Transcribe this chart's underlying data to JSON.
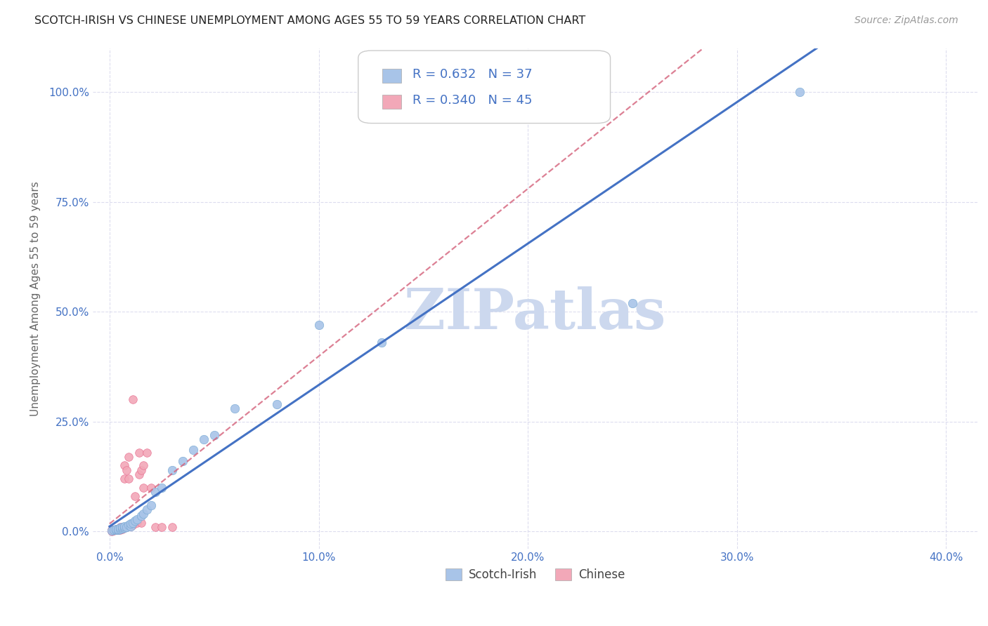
{
  "title": "SCOTCH-IRISH VS CHINESE UNEMPLOYMENT AMONG AGES 55 TO 59 YEARS CORRELATION CHART",
  "source": "Source: ZipAtlas.com",
  "ylabel": "Unemployment Among Ages 55 to 59 years",
  "xlabel_ticks": [
    "0.0%",
    "10.0%",
    "20.0%",
    "30.0%",
    "40.0%"
  ],
  "xlabel_vals": [
    0.0,
    0.1,
    0.2,
    0.3,
    0.4
  ],
  "ylabel_ticks": [
    "0.0%",
    "25.0%",
    "50.0%",
    "75.0%",
    "100.0%"
  ],
  "ylabel_vals": [
    0.0,
    0.25,
    0.5,
    0.75,
    1.0
  ],
  "xlim": [
    -0.008,
    0.415
  ],
  "ylim": [
    -0.04,
    1.1
  ],
  "scotch_irish_R": "0.632",
  "scotch_irish_N": "37",
  "chinese_R": "0.340",
  "chinese_N": "45",
  "scotch_irish_color": "#a8c4e8",
  "scotch_irish_edge": "#7aaad4",
  "chinese_color": "#f2a8b8",
  "chinese_edge": "#e87090",
  "trend_scotch_color": "#4472c4",
  "trend_chinese_color": "#d4607a",
  "watermark": "ZIPatlas",
  "watermark_color": "#ccd8ee",
  "background_color": "#ffffff",
  "grid_color": "#ddddee",
  "scotch_irish_x": [
    0.001,
    0.002,
    0.003,
    0.003,
    0.004,
    0.004,
    0.005,
    0.005,
    0.006,
    0.006,
    0.007,
    0.007,
    0.008,
    0.009,
    0.01,
    0.01,
    0.011,
    0.012,
    0.013,
    0.015,
    0.016,
    0.018,
    0.02,
    0.022,
    0.025,
    0.03,
    0.035,
    0.04,
    0.045,
    0.05,
    0.06,
    0.08,
    0.1,
    0.13,
    0.18,
    0.25,
    0.33
  ],
  "scotch_irish_y": [
    0.002,
    0.003,
    0.003,
    0.005,
    0.004,
    0.006,
    0.005,
    0.008,
    0.007,
    0.01,
    0.008,
    0.012,
    0.01,
    0.015,
    0.012,
    0.018,
    0.02,
    0.025,
    0.028,
    0.035,
    0.04,
    0.05,
    0.06,
    0.09,
    0.1,
    0.14,
    0.16,
    0.185,
    0.21,
    0.22,
    0.28,
    0.29,
    0.47,
    0.43,
    1.0,
    0.52,
    1.0
  ],
  "chinese_x": [
    0.001,
    0.001,
    0.001,
    0.001,
    0.001,
    0.002,
    0.002,
    0.002,
    0.002,
    0.003,
    0.003,
    0.003,
    0.004,
    0.004,
    0.004,
    0.005,
    0.005,
    0.005,
    0.005,
    0.005,
    0.006,
    0.006,
    0.007,
    0.007,
    0.007,
    0.008,
    0.008,
    0.009,
    0.009,
    0.01,
    0.011,
    0.011,
    0.012,
    0.013,
    0.014,
    0.014,
    0.015,
    0.015,
    0.016,
    0.016,
    0.018,
    0.02,
    0.022,
    0.025,
    0.03
  ],
  "chinese_y": [
    0.001,
    0.002,
    0.002,
    0.003,
    0.003,
    0.002,
    0.003,
    0.004,
    0.004,
    0.003,
    0.004,
    0.005,
    0.003,
    0.004,
    0.006,
    0.004,
    0.005,
    0.006,
    0.008,
    0.01,
    0.005,
    0.008,
    0.008,
    0.12,
    0.15,
    0.01,
    0.14,
    0.12,
    0.17,
    0.012,
    0.3,
    0.015,
    0.08,
    0.02,
    0.13,
    0.18,
    0.14,
    0.02,
    0.15,
    0.1,
    0.18,
    0.1,
    0.01,
    0.01,
    0.01
  ]
}
